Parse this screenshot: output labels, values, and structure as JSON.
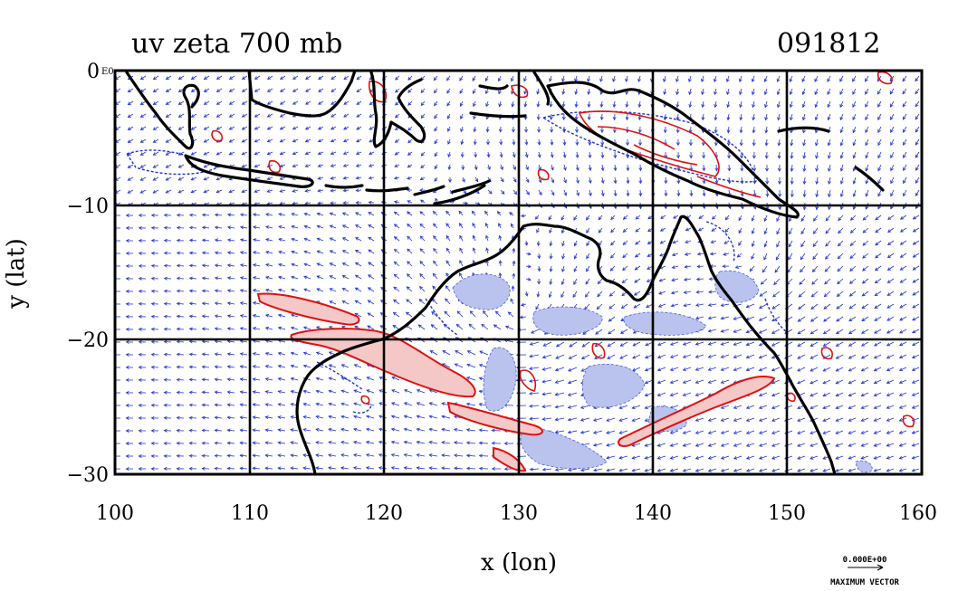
{
  "title": "uv zeta 700 mb",
  "date_label": "091812",
  "top_label": "0",
  "top_label_suffix": "E0",
  "xlabel": "x (lon)",
  "ylabel": "y (lat)",
  "x_ticks": [
    "100",
    "110",
    "120",
    "130",
    "140",
    "150",
    "160"
  ],
  "y_ticks": [
    "0",
    "−10",
    "−20",
    "−30"
  ],
  "x_range": [
    100,
    160
  ],
  "y_range": [
    -30,
    0
  ],
  "vector_scale_value": "0.000E+00",
  "vector_scale_label": "MAXIMUM VECTOR",
  "colors": {
    "vectors": "#2233cc",
    "positive_vorticity": "#e01010",
    "positive_fill": "#f5c8c8",
    "negative_vorticity": "#2233cc",
    "negative_fill": "#b9c3ee",
    "coastline": "#000000"
  }
}
